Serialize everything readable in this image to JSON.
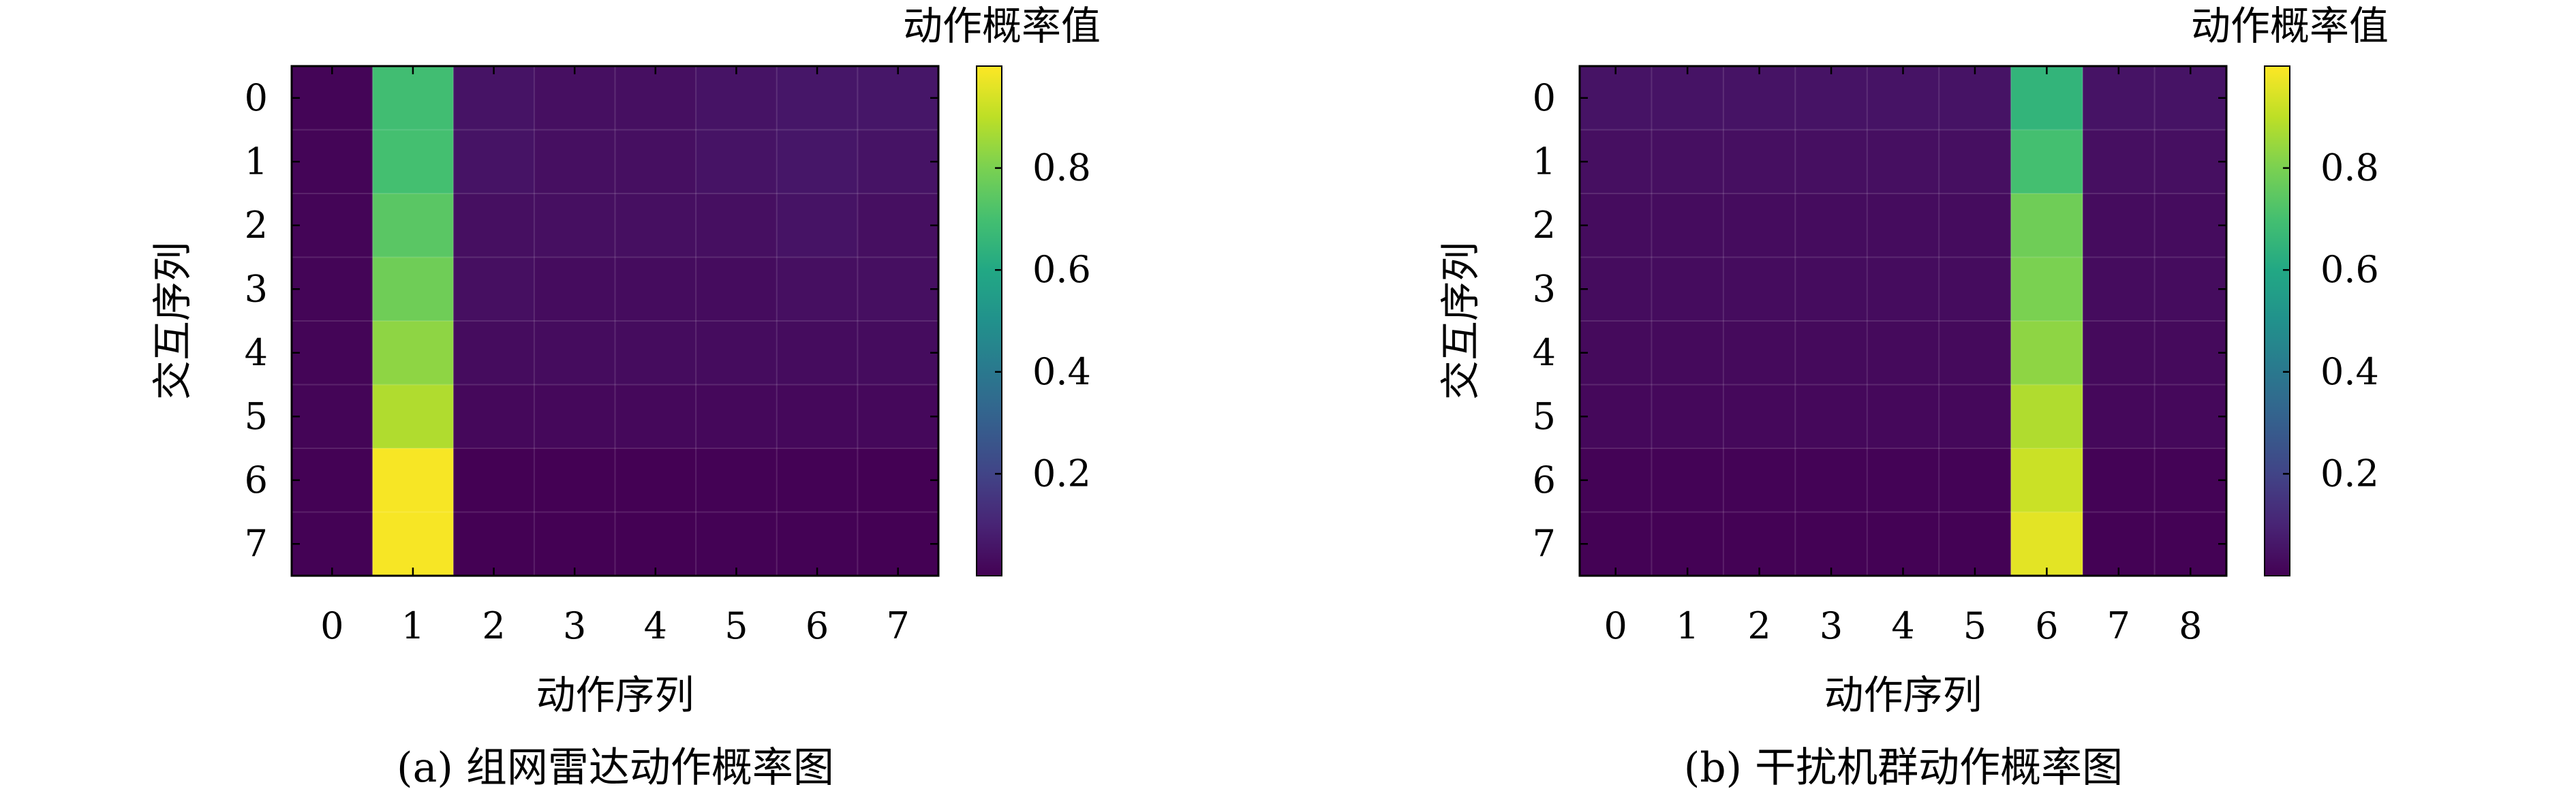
{
  "chart_data": [
    {
      "type": "heatmap",
      "caption": "(a) 组网雷达动作概率图",
      "xlabel": "动作序列",
      "ylabel": "交互序列",
      "colorbar_title": "动作概率值",
      "colorbar_ticks": [
        "0.2",
        "0.4",
        "0.6",
        "0.8"
      ],
      "colormap": "viridis",
      "x": [
        "0",
        "1",
        "2",
        "3",
        "4",
        "5",
        "6",
        "7"
      ],
      "y": [
        "0",
        "1",
        "2",
        "3",
        "4",
        "5",
        "6",
        "7"
      ],
      "values": [
        [
          0.01,
          0.69,
          0.05,
          0.04,
          0.04,
          0.05,
          0.06,
          0.06
        ],
        [
          0.01,
          0.7,
          0.05,
          0.04,
          0.04,
          0.05,
          0.06,
          0.05
        ],
        [
          0.01,
          0.74,
          0.04,
          0.04,
          0.04,
          0.04,
          0.05,
          0.04
        ],
        [
          0.01,
          0.78,
          0.04,
          0.03,
          0.03,
          0.03,
          0.04,
          0.04
        ],
        [
          0.01,
          0.83,
          0.03,
          0.03,
          0.03,
          0.03,
          0.03,
          0.03
        ],
        [
          0.01,
          0.88,
          0.02,
          0.02,
          0.02,
          0.02,
          0.02,
          0.02
        ],
        [
          0.002,
          0.99,
          0.001,
          0.001,
          0.001,
          0.002,
          0.002,
          0.001
        ],
        [
          0.002,
          0.99,
          0.001,
          0.001,
          0.001,
          0.002,
          0.002,
          0.001
        ]
      ]
    },
    {
      "type": "heatmap",
      "caption": "(b) 干扰机群动作概率图",
      "xlabel": "动作序列",
      "ylabel": "交互序列",
      "colorbar_title": "动作概率值",
      "colorbar_ticks": [
        "0.2",
        "0.4",
        "0.6",
        "0.8"
      ],
      "colormap": "viridis",
      "x": [
        "0",
        "1",
        "2",
        "3",
        "4",
        "5",
        "6",
        "7",
        "8"
      ],
      "y": [
        "0",
        "1",
        "2",
        "3",
        "4",
        "5",
        "6",
        "7"
      ],
      "values": [
        [
          0.05,
          0.05,
          0.05,
          0.05,
          0.05,
          0.05,
          0.65,
          0.05,
          0.05
        ],
        [
          0.04,
          0.04,
          0.04,
          0.04,
          0.04,
          0.04,
          0.7,
          0.04,
          0.04
        ],
        [
          0.03,
          0.03,
          0.03,
          0.03,
          0.03,
          0.03,
          0.78,
          0.03,
          0.03
        ],
        [
          0.03,
          0.03,
          0.03,
          0.03,
          0.03,
          0.03,
          0.8,
          0.03,
          0.03
        ],
        [
          0.025,
          0.025,
          0.025,
          0.025,
          0.025,
          0.025,
          0.83,
          0.025,
          0.025
        ],
        [
          0.02,
          0.02,
          0.02,
          0.02,
          0.02,
          0.02,
          0.88,
          0.02,
          0.02
        ],
        [
          0.005,
          0.005,
          0.005,
          0.005,
          0.005,
          0.005,
          0.92,
          0.005,
          0.005
        ],
        [
          0.002,
          0.002,
          0.002,
          0.002,
          0.002,
          0.002,
          0.96,
          0.002,
          0.002
        ]
      ]
    }
  ]
}
